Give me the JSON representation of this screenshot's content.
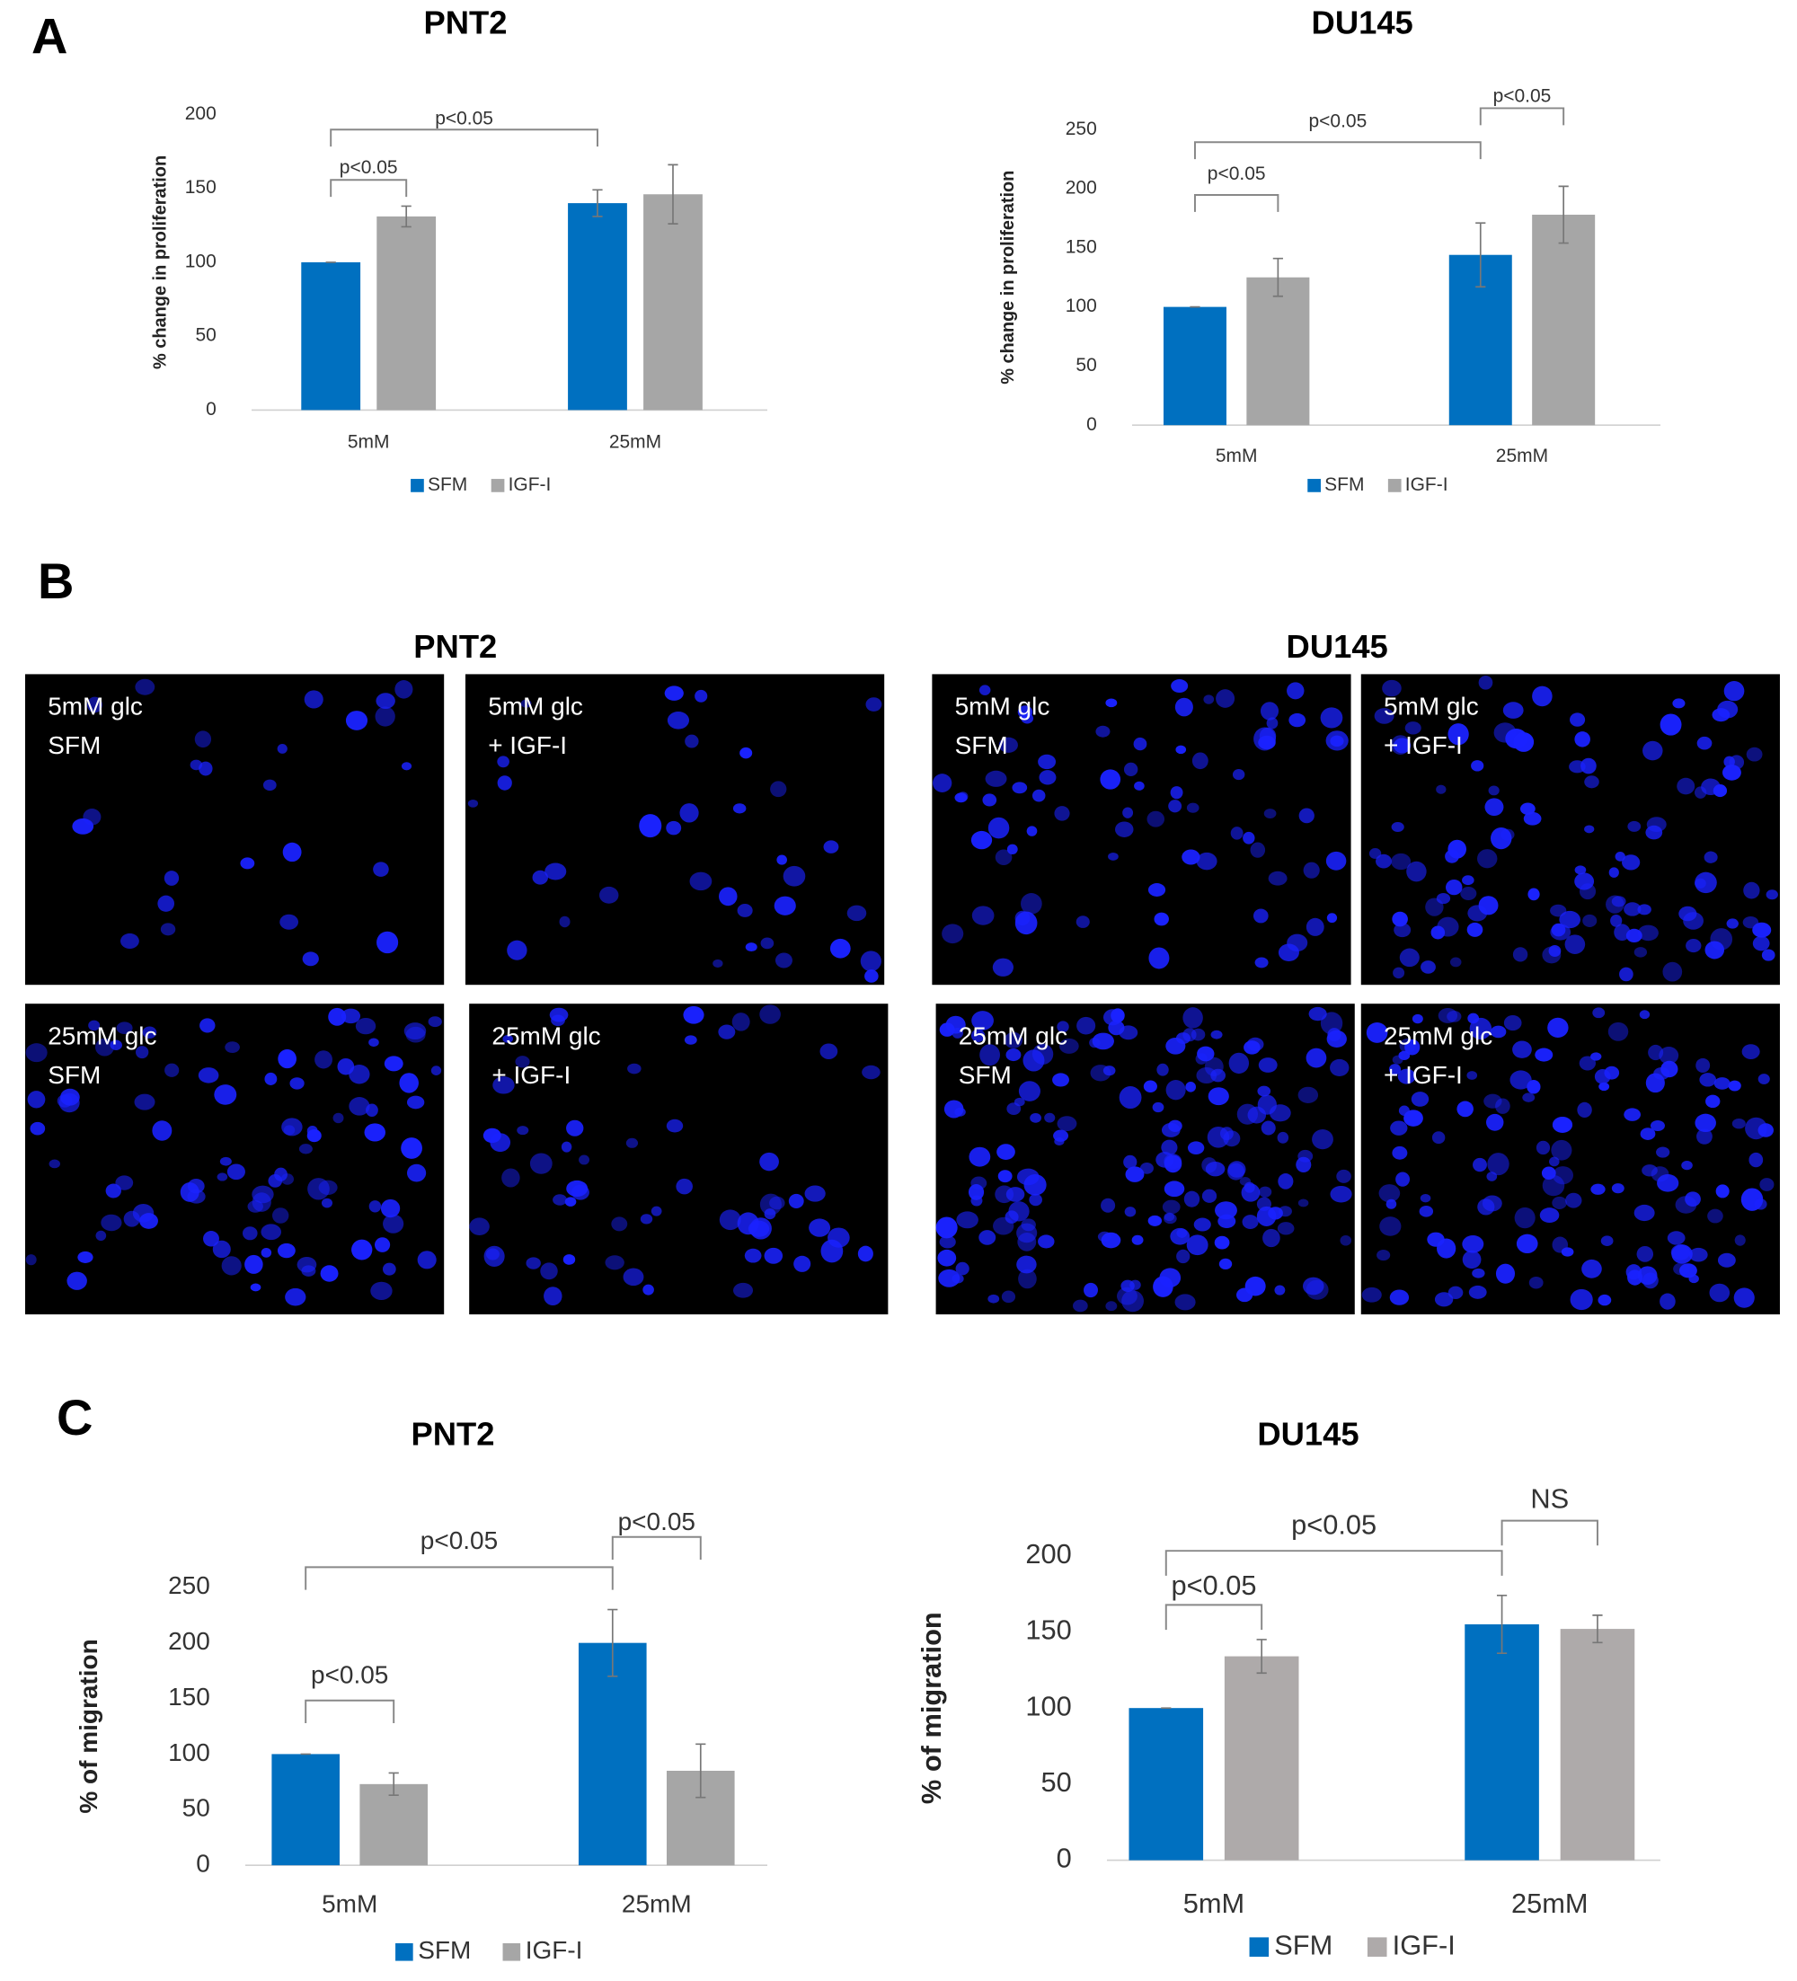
{
  "panel_labels": [
    "A",
    "B",
    "C"
  ],
  "micrographs": {
    "groups": [
      {
        "title": "PNT2",
        "images": [
          {
            "lines": [
              "5mM glc",
              "SFM"
            ]
          },
          {
            "lines": [
              "5mM glc",
              "+ IGF-I"
            ]
          },
          {
            "lines": [
              "25mM glc",
              "SFM"
            ]
          },
          {
            "lines": [
              "25mM glc",
              "+ IGF-I"
            ]
          }
        ]
      },
      {
        "title": "DU145",
        "images": [
          {
            "lines": [
              "5mM glc",
              "SFM"
            ]
          },
          {
            "lines": [
              "5mM glc",
              "+ IGF-I"
            ]
          },
          {
            "lines": [
              "25mM glc",
              "SFM"
            ]
          },
          {
            "lines": [
              "25mM glc",
              "+ IGF-I"
            ]
          }
        ]
      }
    ]
  },
  "chart_data": [
    {
      "type": "bar",
      "title": "PNT2",
      "y_label": "% change in proliferation",
      "categories": [
        "5mM",
        "25mM"
      ],
      "series": [
        {
          "name": "SFM",
          "color": "#0070c0",
          "values": [
            100,
            140
          ],
          "errors": [
            0,
            9
          ]
        },
        {
          "name": "IGF-I",
          "color": "#a6a6a6",
          "values": [
            131,
            146
          ],
          "errors": [
            7,
            20
          ]
        }
      ],
      "ylim": [
        0,
        200
      ],
      "yticks": [
        0,
        50,
        100,
        150,
        200
      ],
      "grid": false,
      "legend": "bottom",
      "annotations": [
        "p<0.05",
        "p<0.05"
      ]
    },
    {
      "type": "bar",
      "title": "DU145",
      "y_label": "% change in proliferation",
      "categories": [
        "5mM",
        "25mM"
      ],
      "series": [
        {
          "name": "SFM",
          "color": "#0070c0",
          "values": [
            100,
            144
          ],
          "errors": [
            0,
            27
          ]
        },
        {
          "name": "IGF-I",
          "color": "#a6a6a6",
          "values": [
            125,
            178
          ],
          "errors": [
            16,
            24
          ]
        }
      ],
      "ylim": [
        0,
        250
      ],
      "yticks": [
        0,
        50,
        100,
        150,
        200,
        250
      ],
      "grid": false,
      "legend": "bottom",
      "annotations": [
        "p<0.05",
        "p<0.05",
        "p<0.05"
      ]
    },
    {
      "type": "bar",
      "title": "PNT2",
      "y_label": "% of migration",
      "categories": [
        "5mM",
        "25mM"
      ],
      "series": [
        {
          "name": "SFM",
          "color": "#0070c0",
          "values": [
            100,
            200
          ],
          "errors": [
            0,
            30
          ]
        },
        {
          "name": "IGF-I",
          "color": "#a6a6a6",
          "values": [
            73,
            85
          ],
          "errors": [
            10,
            24
          ]
        }
      ],
      "ylim": [
        0,
        250
      ],
      "yticks": [
        0,
        50,
        100,
        150,
        200,
        250
      ],
      "grid": false,
      "legend": "bottom",
      "annotations": [
        "p<0.05",
        "p<0.05",
        "p<0.05"
      ]
    },
    {
      "type": "bar",
      "title": "DU145",
      "y_label": "% of migration",
      "categories": [
        "5mM",
        "25mM"
      ],
      "series": [
        {
          "name": "SFM",
          "color": "#0070c0",
          "values": [
            100,
            155
          ],
          "errors": [
            0,
            19
          ]
        },
        {
          "name": "IGF-I",
          "color": "#aeaaaa",
          "values": [
            134,
            152
          ],
          "errors": [
            11,
            9
          ]
        }
      ],
      "ylim": [
        0,
        200
      ],
      "yticks": [
        0,
        50,
        100,
        150,
        200
      ],
      "grid": false,
      "legend": "bottom",
      "annotations": [
        "p<0.05",
        "p<0.05",
        "NS"
      ]
    }
  ]
}
